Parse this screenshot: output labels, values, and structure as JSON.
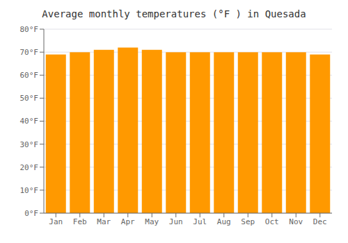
{
  "chart_data": {
    "type": "bar",
    "title": "Average monthly temperatures (°F ) in Quesada",
    "categories": [
      "Jan",
      "Feb",
      "Mar",
      "Apr",
      "May",
      "Jun",
      "Jul",
      "Aug",
      "Sep",
      "Oct",
      "Nov",
      "Dec"
    ],
    "values": [
      69,
      70,
      71,
      72,
      71,
      70,
      70,
      70,
      70,
      70,
      70,
      69
    ],
    "color": "#FF9900",
    "ylim": [
      0,
      80
    ],
    "yticks": [
      {
        "value": 0,
        "label": "0°F"
      },
      {
        "value": 10,
        "label": "10°F"
      },
      {
        "value": 20,
        "label": "20°F"
      },
      {
        "value": 30,
        "label": "30°F"
      },
      {
        "value": 40,
        "label": "40°F"
      },
      {
        "value": 50,
        "label": "50°F"
      },
      {
        "value": 60,
        "label": "60°F"
      },
      {
        "value": 70,
        "label": "70°F"
      },
      {
        "value": 80,
        "label": "80°F"
      }
    ],
    "grid": true
  }
}
